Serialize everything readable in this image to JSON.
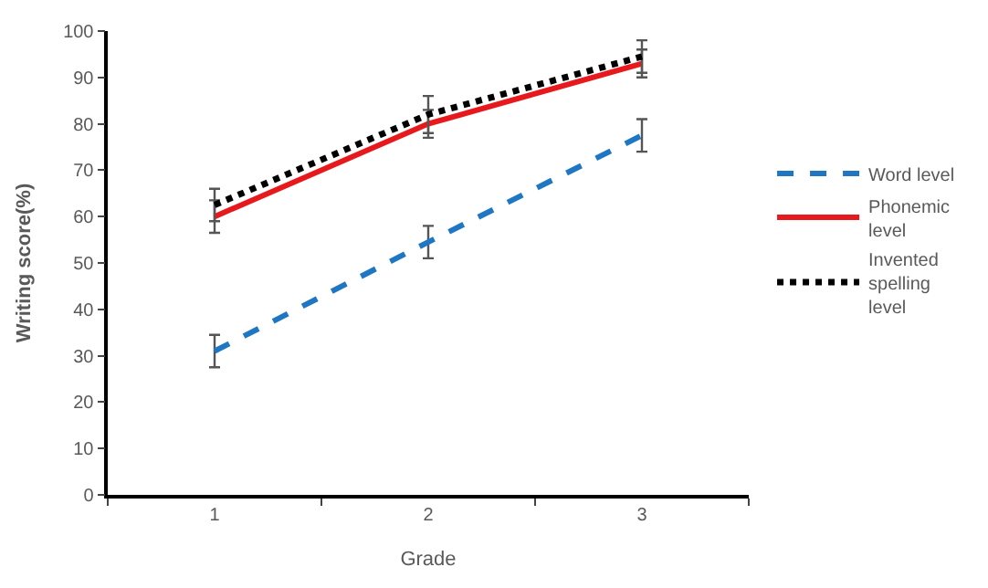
{
  "chart_data": {
    "type": "line",
    "xlabel": "Grade",
    "ylabel": "Writing score(%)",
    "categories": [
      "1",
      "2",
      "3"
    ],
    "series": [
      {
        "name": "Word level",
        "color": "#1f77c4",
        "line_style": "dashed",
        "values": [
          31,
          54.5,
          77.5
        ],
        "errors": [
          3.5,
          3.5,
          3.5
        ]
      },
      {
        "name": "Phonemic level",
        "color": "#e8191c",
        "line_style": "solid",
        "values": [
          60,
          80,
          93
        ],
        "errors": [
          3.5,
          3,
          3
        ]
      },
      {
        "name": "Invented spelling level",
        "color": "#000000",
        "line_style": "dotted",
        "values": [
          62.5,
          82,
          94.5
        ],
        "errors": [
          3.5,
          4,
          3.5
        ]
      }
    ],
    "ylim": [
      0,
      100
    ],
    "yticks": [
      0,
      10,
      20,
      30,
      40,
      50,
      60,
      70,
      80,
      90,
      100
    ],
    "legend": "right",
    "marker": "none"
  }
}
